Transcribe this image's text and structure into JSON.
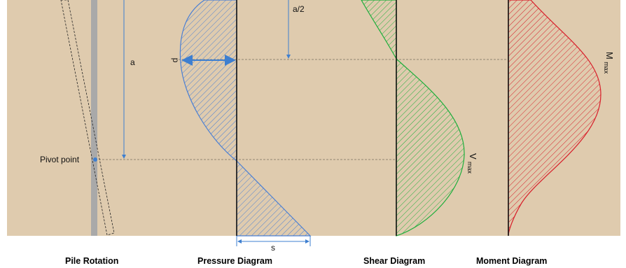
{
  "colors": {
    "panel": "#dfcbae",
    "pressure": "#4a7fd4",
    "shear": "#1fae3c",
    "moment": "#d81f2a",
    "pile": "#a9a9a9",
    "guide": "#7a6e60",
    "arrow": "#3e7fd0"
  },
  "labels": {
    "a": "a",
    "a_half": "a/2",
    "p": "p",
    "s": "s",
    "pivot": "Pivot point",
    "v_main": "V",
    "v_sub": "max",
    "m_main": "M",
    "m_sub": "max"
  },
  "captions": {
    "pile": "Pile Rotation",
    "pressure": "Pressure Diagram",
    "shear": "Shear Diagram",
    "moment": "Moment Diagram"
  },
  "icons": {
    "dimension_arrow": "arrow-icon",
    "pivot_marker": "pivot-dot-icon"
  }
}
